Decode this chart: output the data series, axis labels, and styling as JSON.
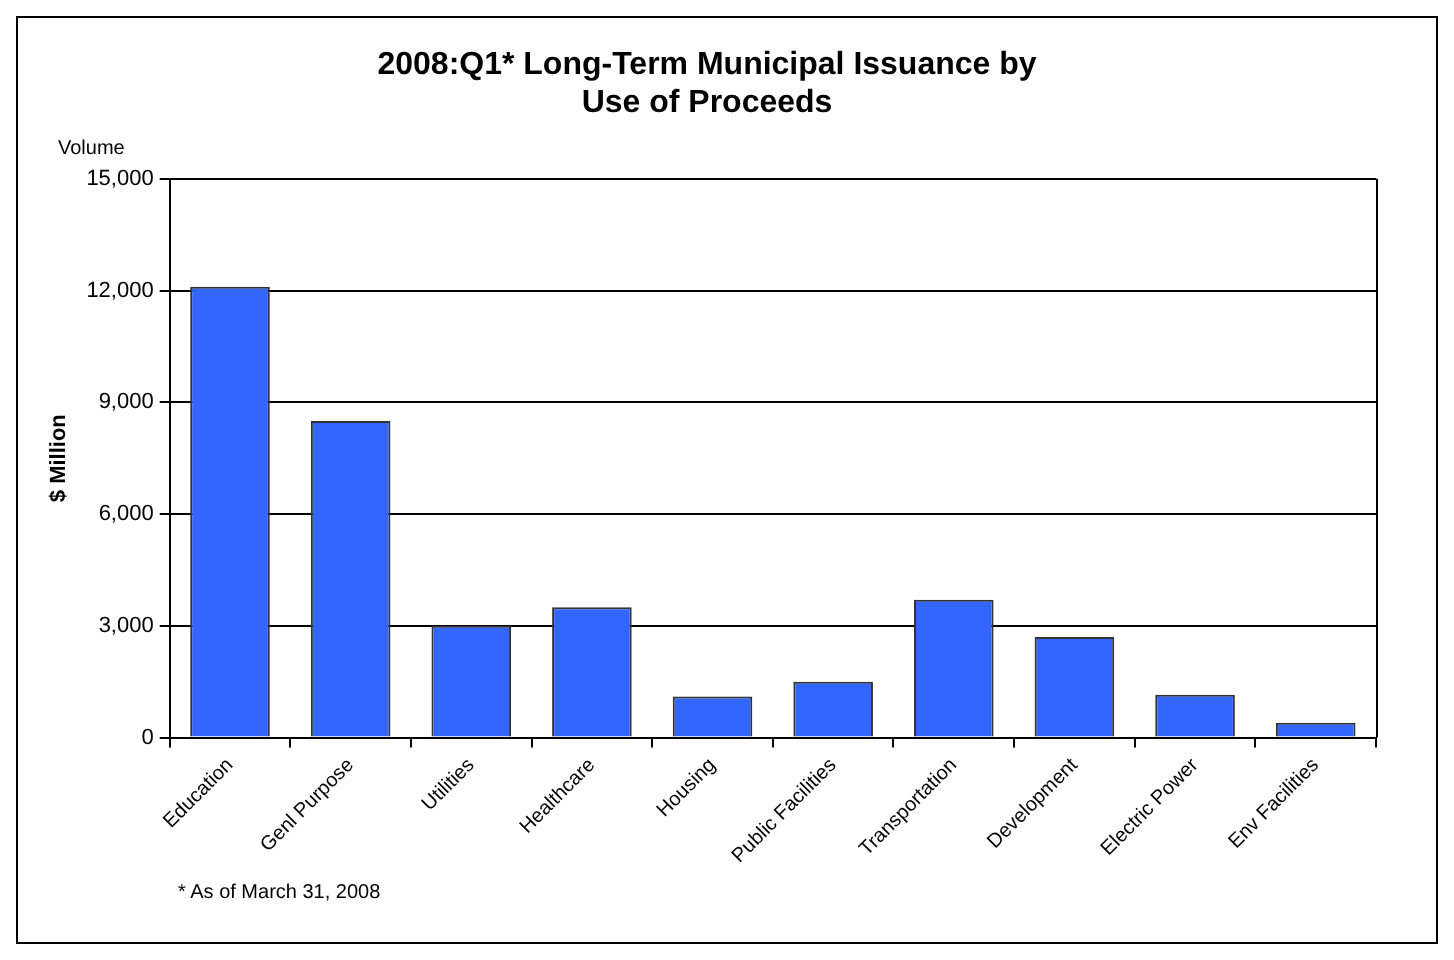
{
  "chart_data": {
    "type": "bar",
    "title": "2008:Q1* Long-Term Municipal Issuance by Use of Proceeds",
    "ylabel": "$ Million",
    "categories": [
      "Education",
      "Genl Purpose",
      "Utilities",
      "Healthcare",
      "Housing",
      "Public Facilities",
      "Transportation",
      "Development",
      "Electric Power",
      "Env Facilities"
    ],
    "values": [
      12100,
      8500,
      3000,
      3500,
      1100,
      1500,
      3700,
      2700,
      1150,
      400
    ],
    "color": "#3366ff",
    "ylim": [
      0,
      15000
    ],
    "yticks": [
      0,
      {
        "value": 3000,
        "label": "3,000"
      },
      {
        "value": 6000,
        "label": "6,000"
      },
      {
        "value": 9000,
        "label": "9,000"
      },
      {
        "value": 12000,
        "label": "12,000"
      },
      {
        "value": 15000,
        "label": "15,000"
      }
    ],
    "grid": "y",
    "legend": false,
    "annotations": [
      "Volume",
      "* As of March 31, 2008"
    ]
  }
}
